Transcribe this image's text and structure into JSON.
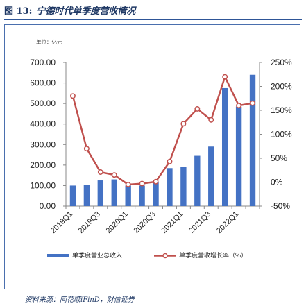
{
  "figure": {
    "label": "图 13:",
    "title": "宁德时代单季度营收情况",
    "source": "资料来源：同花顺iFinD，财信证券"
  },
  "chart_data": {
    "type": "bar+line",
    "unit_label": "单位：亿元",
    "categories": [
      "2019Q1",
      "2019Q2",
      "2019Q3",
      "2019Q4",
      "2020Q1",
      "2020Q2",
      "2020Q3",
      "2020Q4",
      "2021Q1",
      "2021Q2",
      "2021Q3",
      "2021Q4",
      "2022Q1",
      "2022Q2"
    ],
    "tick_label_categories": [
      "2019Q1",
      "2019Q3",
      "2020Q1",
      "2020Q3",
      "2021Q1",
      "2021Q3",
      "2022Q1"
    ],
    "series": [
      {
        "name": "单季度营业总收入",
        "type": "bar",
        "axis": "left",
        "color": "#4472c4",
        "values": [
          100,
          103,
          125,
          130,
          100,
          100,
          115,
          185,
          190,
          245,
          290,
          575,
          485,
          640
        ]
      },
      {
        "name": "单季度营收增长率（%）",
        "type": "line",
        "axis": "right",
        "color": "#c0504d",
        "values": [
          180,
          70,
          21,
          15,
          -5,
          -3,
          1,
          43,
          122,
          153,
          130,
          220,
          160,
          165
        ]
      }
    ],
    "y_left": {
      "min": 0,
      "max": 700,
      "ticks": [
        "0.00",
        "100.00",
        "200.00",
        "300.00",
        "400.00",
        "500.00",
        "600.00",
        "700.00"
      ]
    },
    "y_right": {
      "min": -50,
      "max": 250,
      "ticks": [
        "-50%",
        "0%",
        "50%",
        "100%",
        "150%",
        "200%",
        "250%"
      ]
    },
    "legend_position": "bottom",
    "grid": false
  }
}
